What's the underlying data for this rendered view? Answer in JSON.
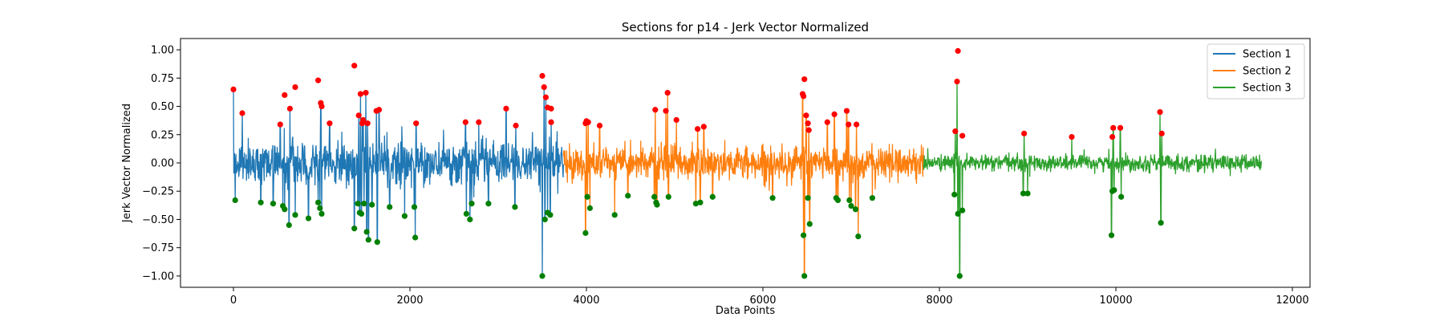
{
  "chart_data": {
    "type": "line",
    "title": "Sections for p14 - Jerk Vector Normalized",
    "xlabel": "Data Points",
    "ylabel": "Jerk Vector Normalized",
    "xlim": [
      -600,
      12200
    ],
    "ylim": [
      -1.1,
      1.1
    ],
    "xticks": [
      0,
      2000,
      4000,
      6000,
      8000,
      10000,
      12000
    ],
    "xtick_labels": [
      "0",
      "2000",
      "4000",
      "6000",
      "8000",
      "10000",
      "12000"
    ],
    "yticks": [
      -1.0,
      -0.75,
      -0.5,
      -0.25,
      0.0,
      0.25,
      0.5,
      0.75,
      1.0
    ],
    "ytick_labels": [
      "−1.00",
      "−0.75",
      "−0.50",
      "−0.25",
      "0.00",
      "0.25",
      "0.50",
      "0.75",
      "1.00"
    ],
    "grid": false,
    "legend_position": "top-right",
    "series": [
      {
        "name": "Section 1",
        "color": "#1f77b4",
        "x_range": [
          0,
          3740
        ],
        "typical_amplitude": 0.2
      },
      {
        "name": "Section 2",
        "color": "#ff7f0e",
        "x_range": [
          3740,
          7820
        ],
        "typical_amplitude": 0.16
      },
      {
        "name": "Section 3",
        "color": "#2ca02c",
        "x_range": [
          7820,
          11650
        ],
        "typical_amplitude": 0.08
      }
    ],
    "peaks": {
      "color": "#ff0000",
      "x": [
        0,
        100,
        530,
        580,
        640,
        700,
        960,
        990,
        1000,
        1090,
        1370,
        1420,
        1440,
        1460,
        1470,
        1500,
        1520,
        1620,
        1650,
        2070,
        2630,
        2780,
        3090,
        3200,
        3500,
        3520,
        3540,
        3560,
        3600,
        3600,
        3990,
        4000,
        4020,
        4150,
        4780,
        4900,
        4920,
        5020,
        5260,
        5330,
        6450,
        6460,
        6470,
        6490,
        6510,
        6520,
        6730,
        6810,
        6950,
        6970,
        7060,
        8180,
        8200,
        8210,
        8260,
        8960,
        9500,
        9960,
        9970,
        10050,
        10500,
        10520
      ],
      "y": [
        0.65,
        0.44,
        0.34,
        0.6,
        0.48,
        0.67,
        0.73,
        0.53,
        0.5,
        0.35,
        0.86,
        0.42,
        0.61,
        0.35,
        0.38,
        0.62,
        0.35,
        0.46,
        0.47,
        0.35,
        0.36,
        0.36,
        0.48,
        0.33,
        0.77,
        0.67,
        0.58,
        0.49,
        0.48,
        0.36,
        0.35,
        0.37,
        0.36,
        0.33,
        0.47,
        0.46,
        0.62,
        0.38,
        0.3,
        0.32,
        0.61,
        0.59,
        0.74,
        0.42,
        0.35,
        0.29,
        0.36,
        0.43,
        0.46,
        0.34,
        0.34,
        0.28,
        0.72,
        0.99,
        0.24,
        0.26,
        0.23,
        0.23,
        0.31,
        0.31,
        0.45,
        0.26
      ]
    },
    "troughs": {
      "color": "#008000",
      "x": [
        20,
        310,
        450,
        560,
        580,
        630,
        700,
        850,
        960,
        980,
        1000,
        1370,
        1410,
        1430,
        1450,
        1480,
        1510,
        1530,
        1570,
        1630,
        1770,
        1940,
        2050,
        2060,
        2640,
        2680,
        2700,
        2890,
        3190,
        3500,
        3530,
        3560,
        3590,
        3990,
        4010,
        4040,
        4320,
        4470,
        4770,
        4790,
        4800,
        4930,
        5240,
        5290,
        5430,
        6110,
        6460,
        6470,
        6510,
        6530,
        6830,
        6850,
        6980,
        7000,
        7050,
        7080,
        7240,
        8170,
        8210,
        8230,
        8260,
        8950,
        9000,
        9950,
        9960,
        9980,
        10060,
        10510
      ],
      "y": [
        -0.33,
        -0.35,
        -0.36,
        -0.38,
        -0.41,
        -0.55,
        -0.46,
        -0.49,
        -0.35,
        -0.4,
        -0.45,
        -0.58,
        -0.36,
        -0.44,
        -0.45,
        -0.36,
        -0.61,
        -0.68,
        -0.37,
        -0.7,
        -0.39,
        -0.47,
        -0.39,
        -0.66,
        -0.45,
        -0.5,
        -0.36,
        -0.36,
        -0.39,
        -1.0,
        -0.5,
        -0.44,
        -0.46,
        -0.62,
        -0.3,
        -0.4,
        -0.46,
        -0.29,
        -0.3,
        -0.35,
        -0.37,
        -0.3,
        -0.36,
        -0.35,
        -0.3,
        -0.31,
        -0.64,
        -1.0,
        -0.31,
        -0.54,
        -0.31,
        -0.33,
        -0.33,
        -0.38,
        -0.41,
        -0.65,
        -0.31,
        -0.28,
        -0.45,
        -1.0,
        -0.42,
        -0.27,
        -0.27,
        -0.64,
        -0.25,
        -0.24,
        -0.3,
        -0.53
      ]
    }
  }
}
